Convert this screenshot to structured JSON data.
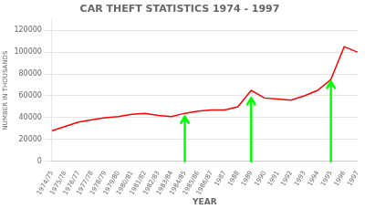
{
  "chart_data": {
    "type": "line",
    "title": "CAR THEFT STATISTICS 1974 - 1997",
    "xlabel": "YEAR",
    "ylabel": "NUMBER IN THOUSANDS",
    "categories": [
      "1974/75",
      "1975/76",
      "1976/77",
      "1977/78",
      "1978/79",
      "1979/80",
      "1980/81",
      "1981/82",
      "1982/83",
      "1983/84",
      "1984/85",
      "1985/86",
      "1986/87",
      "1987",
      "1988",
      "1989",
      "1990",
      "1991",
      "1992",
      "1993",
      "1994",
      "1995",
      "1996",
      "1997"
    ],
    "values": [
      28000,
      32000,
      36000,
      38000,
      40000,
      41000,
      43000,
      44000,
      42000,
      41000,
      44000,
      46000,
      47000,
      47000,
      50000,
      65000,
      58000,
      57000,
      56000,
      60000,
      65000,
      75000,
      105000,
      100000
    ],
    "color": "#ff0000",
    "ylim": [
      0,
      130000
    ],
    "yticks": [
      0,
      20000,
      40000,
      60000,
      80000,
      100000,
      120000
    ],
    "grid": "y",
    "arrows": [
      {
        "x": "1984/85",
        "y_base": 0,
        "y_tip": 41000,
        "color": "#00ff00"
      },
      {
        "x": "1989",
        "y_base": 0,
        "y_tip": 58000,
        "color": "#00ff00"
      },
      {
        "x": "1995",
        "y_base": 0,
        "y_tip": 73000,
        "color": "#00ff00"
      }
    ]
  }
}
